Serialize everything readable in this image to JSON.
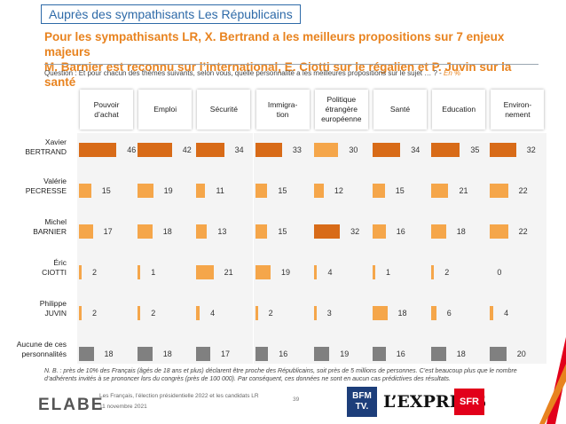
{
  "header": {
    "tag": "Auprès des sympathisants Les Républicains",
    "title_line1": "Pour les sympathisants LR, X. Bertrand a les meilleurs propositions sur 7 enjeux majeurs",
    "title_line2": "M. Barnier est reconnu sur l’international, E. Ciotti sur le régalien et P. Juvin sur la santé",
    "question": "Question : Et pour chacun des thèmes suivants, selon vous, quelle personnalité a les meilleures propositions sur le sujet … ? -",
    "unit": "En %"
  },
  "colors": {
    "orange": "#e8831f",
    "dark_orange": "#d86b18",
    "light_orange": "#f5a64a",
    "grey": "#808080",
    "blue": "#2e6aa8"
  },
  "chart_data": {
    "type": "bar",
    "categories": [
      "Pouvoir d’achat",
      "Emploi",
      "Sécurité",
      "Immigra-tion",
      "Politique étrangère européenne",
      "Santé",
      "Education",
      "Environ-nement"
    ],
    "category_lines": [
      [
        "Pouvoir",
        "d’achat"
      ],
      [
        "Emploi"
      ],
      [
        "Sécurité"
      ],
      [
        "Immigra-",
        "tion"
      ],
      [
        "Politique",
        "étrangère",
        "européenne"
      ],
      [
        "Santé"
      ],
      [
        "Education"
      ],
      [
        "Environ-",
        "nement"
      ]
    ],
    "series": [
      {
        "name": "Xavier BERTRAND",
        "lines": [
          "Xavier",
          "BERTRAND"
        ],
        "values": [
          46,
          42,
          34,
          33,
          30,
          34,
          35,
          32
        ]
      },
      {
        "name": "Valérie PECRESSE",
        "lines": [
          "Valérie",
          "PECRESSE"
        ],
        "values": [
          15,
          19,
          11,
          15,
          12,
          15,
          21,
          22
        ]
      },
      {
        "name": "Michel BARNIER",
        "lines": [
          "Michel",
          "BARNIER"
        ],
        "values": [
          17,
          18,
          13,
          15,
          32,
          16,
          18,
          22
        ]
      },
      {
        "name": "Éric CIOTTI",
        "lines": [
          "Éric",
          "CIOTTI"
        ],
        "values": [
          2,
          1,
          21,
          19,
          4,
          1,
          2,
          0
        ]
      },
      {
        "name": "Philippe JUVIN",
        "lines": [
          "Philippe",
          "JUVIN"
        ],
        "values": [
          2,
          2,
          4,
          2,
          3,
          18,
          6,
          4
        ]
      },
      {
        "name": "Aucune de ces personnalités",
        "lines": [
          "Aucune de ces",
          "personnalités"
        ],
        "values": [
          18,
          18,
          17,
          16,
          19,
          16,
          18,
          20
        ]
      }
    ],
    "xlim": [
      0,
      50
    ]
  },
  "note": "N. B. : près de 10% des Français (âgés de 18 ans et plus) déclarent être proche des Républicains, soit près de 5 millions de personnes. C’est beaucoup plus que le nombre d’adhérents invités à se prononcer lors du congrès (près de 100 000). Par conséquent, ces données ne sont en aucun cas prédictives des résultats.",
  "footer": {
    "brand": "ELABE",
    "line1": "Les Français, l’élection présidentielle 2022 et les candidats LR",
    "line2": "11 novembre 2021",
    "page": "39",
    "logo_bfm": "BFM TV.",
    "logo_express": "L’EXPRESS",
    "logo_sfr": "SFR"
  }
}
